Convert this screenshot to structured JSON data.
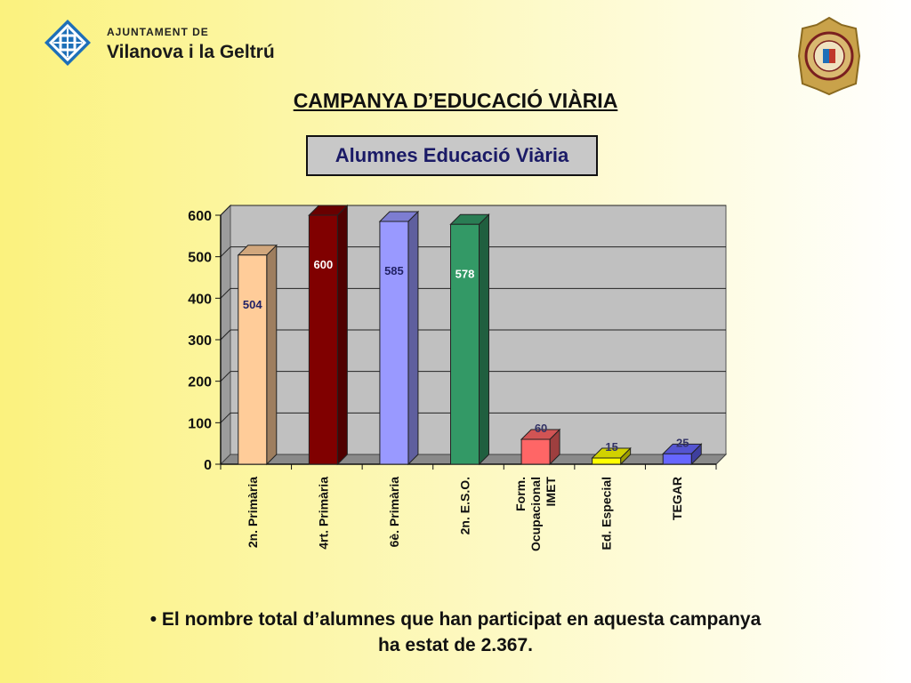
{
  "header": {
    "org_line1": "AJUNTAMENT DE",
    "org_line2": "Vilanova i la Geltrú",
    "logo_icon": "municipal-crest-icon",
    "seal_icon": "police-badge-icon"
  },
  "page_title": "CAMPANYA D’EDUCACIÓ VIÀRIA",
  "chart_data": {
    "type": "bar",
    "title": "Alumnes Educació Viària",
    "categories": [
      [
        "2n. Primària"
      ],
      [
        "4rt. Primària"
      ],
      [
        "6è. Primària"
      ],
      [
        "2n. E.S.O."
      ],
      [
        "Form.",
        "Ocupacional",
        "IMET"
      ],
      [
        "Ed. Especial"
      ],
      [
        "TEGAR"
      ]
    ],
    "values": [
      504,
      600,
      585,
      578,
      60,
      15,
      25
    ],
    "colors": [
      "#ffcc99",
      "#800000",
      "#9999ff",
      "#339966",
      "#ff6666",
      "#ffff00",
      "#6666ff"
    ],
    "ylim": [
      0,
      600
    ],
    "yticks": [
      0,
      100,
      200,
      300,
      400,
      500,
      600
    ],
    "grid": true,
    "xlabel": "",
    "ylabel": ""
  },
  "footer": {
    "line1": "• El nombre total d’alumnes que han participat en aquesta campanya",
    "line2": "ha estat de 2.367."
  }
}
